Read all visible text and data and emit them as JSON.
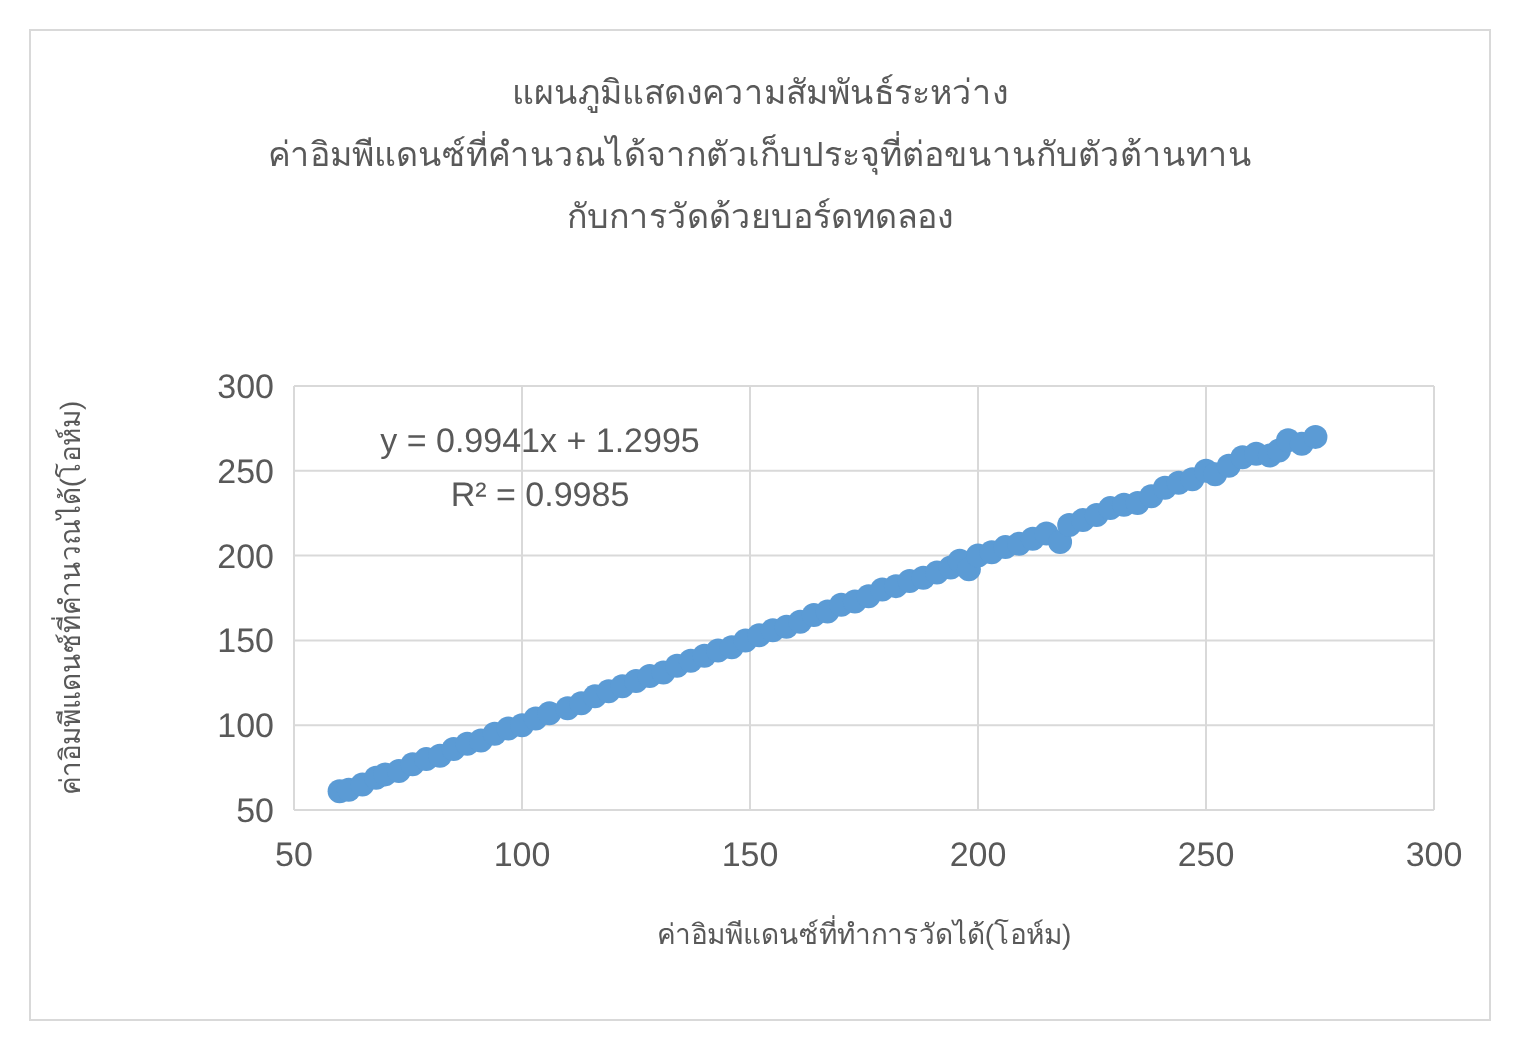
{
  "chart_data": {
    "type": "scatter",
    "title": "แผนภูมิแสดงความสัมพันธ์ระหว่าง\nค่าอิมพีแดนซ์ที่คำนวณได้จากตัวเก็บประจุที่ต่อขนานกับตัวต้านทาน\nกับการวัดด้วยบอร์ดทดลอง",
    "xlabel": "ค่าอิมพีแดนซ์ที่ทำการวัดได้(โอห์ม)",
    "ylabel": "ค่าอิมพีแดนซ์ที่คำนวณได้(โอห์ม)",
    "annotations": [
      "y = 0.9941x + 1.2995",
      "R² = 0.9985"
    ],
    "xlim": [
      50,
      300
    ],
    "xticks": [
      50,
      100,
      150,
      200,
      250,
      300
    ],
    "ylim": [
      50,
      300
    ],
    "yticks": [
      50,
      100,
      150,
      200,
      250,
      300
    ],
    "grid": true,
    "marker": "circle",
    "series": [
      {
        "color": "#5b9bd5",
        "x": [
          60,
          62,
          65,
          68,
          70,
          73,
          76,
          79,
          82,
          85,
          88,
          91,
          94,
          97,
          100,
          103,
          106,
          110,
          113,
          116,
          119,
          122,
          125,
          128,
          131,
          134,
          137,
          140,
          143,
          146,
          149,
          152,
          155,
          158,
          161,
          164,
          167,
          170,
          173,
          176,
          179,
          182,
          185,
          188,
          191,
          194,
          196,
          198,
          200,
          203,
          206,
          209,
          212,
          215,
          218,
          220,
          223,
          226,
          229,
          232,
          235,
          238,
          241,
          244,
          247,
          250,
          252,
          255,
          258,
          261,
          264,
          266,
          268,
          271,
          274
        ],
        "values": [
          61,
          62,
          65,
          69,
          71,
          73,
          77,
          80,
          82,
          86,
          89,
          91,
          95,
          98,
          100,
          104,
          107,
          110,
          113,
          117,
          120,
          123,
          126,
          129,
          131,
          135,
          138,
          141,
          144,
          146,
          150,
          153,
          156,
          158,
          161,
          165,
          167,
          171,
          173,
          176,
          180,
          182,
          185,
          187,
          190,
          193,
          197,
          192,
          200,
          202,
          205,
          207,
          210,
          213,
          208,
          218,
          221,
          224,
          228,
          230,
          231,
          235,
          240,
          243,
          245,
          250,
          248,
          253,
          258,
          260,
          259,
          262,
          268,
          266,
          270
        ]
      }
    ]
  }
}
